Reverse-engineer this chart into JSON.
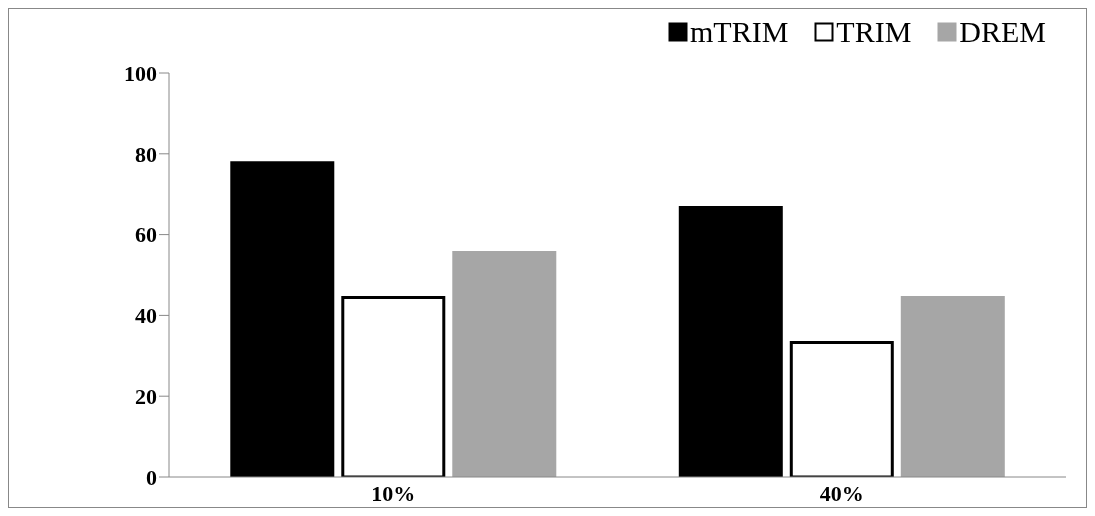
{
  "chart_data": {
    "type": "bar",
    "categories": [
      "10%",
      "40%"
    ],
    "series": [
      {
        "name": "mTRIM",
        "color": "#000000",
        "values": [
          77.8,
          66.7
        ]
      },
      {
        "name": "TRIM",
        "color": "#ffffff",
        "values": [
          44.4,
          33.3
        ]
      },
      {
        "name": "DREM",
        "color": "#a6a6a6",
        "values": [
          55.6,
          44.4
        ]
      }
    ],
    "ylim": [
      0,
      100
    ],
    "yticks": [
      0,
      20,
      40,
      60,
      80,
      100
    ],
    "grid": false,
    "legend": "top right"
  }
}
